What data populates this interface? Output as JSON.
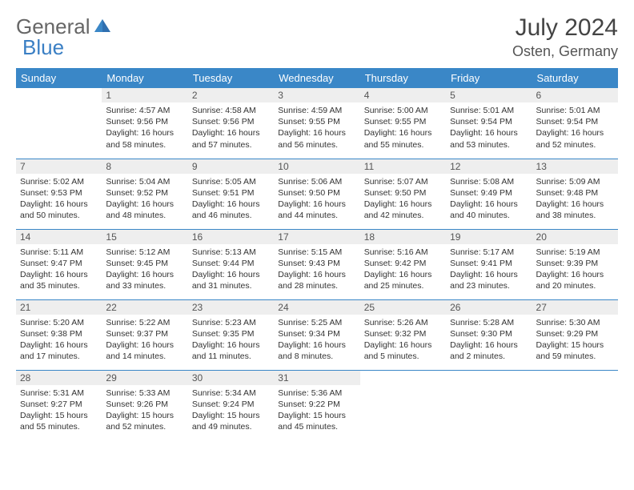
{
  "brand": {
    "part1": "General",
    "part2": "Blue"
  },
  "header": {
    "month": "July 2024",
    "location": "Osten, Germany"
  },
  "weekdays": [
    "Sunday",
    "Monday",
    "Tuesday",
    "Wednesday",
    "Thursday",
    "Friday",
    "Saturday"
  ],
  "colors": {
    "header_bg": "#3a87c7",
    "header_text": "#ffffff",
    "daynum_bg": "#eeeeee",
    "row_divider": "#3a87c7",
    "brand_blue": "#3a7fc4",
    "brand_gray": "#666666"
  },
  "first_weekday_index": 1,
  "days": [
    {
      "n": 1,
      "sunrise": "4:57 AM",
      "sunset": "9:56 PM",
      "daylight": "16 hours and 58 minutes."
    },
    {
      "n": 2,
      "sunrise": "4:58 AM",
      "sunset": "9:56 PM",
      "daylight": "16 hours and 57 minutes."
    },
    {
      "n": 3,
      "sunrise": "4:59 AM",
      "sunset": "9:55 PM",
      "daylight": "16 hours and 56 minutes."
    },
    {
      "n": 4,
      "sunrise": "5:00 AM",
      "sunset": "9:55 PM",
      "daylight": "16 hours and 55 minutes."
    },
    {
      "n": 5,
      "sunrise": "5:01 AM",
      "sunset": "9:54 PM",
      "daylight": "16 hours and 53 minutes."
    },
    {
      "n": 6,
      "sunrise": "5:01 AM",
      "sunset": "9:54 PM",
      "daylight": "16 hours and 52 minutes."
    },
    {
      "n": 7,
      "sunrise": "5:02 AM",
      "sunset": "9:53 PM",
      "daylight": "16 hours and 50 minutes."
    },
    {
      "n": 8,
      "sunrise": "5:04 AM",
      "sunset": "9:52 PM",
      "daylight": "16 hours and 48 minutes."
    },
    {
      "n": 9,
      "sunrise": "5:05 AM",
      "sunset": "9:51 PM",
      "daylight": "16 hours and 46 minutes."
    },
    {
      "n": 10,
      "sunrise": "5:06 AM",
      "sunset": "9:50 PM",
      "daylight": "16 hours and 44 minutes."
    },
    {
      "n": 11,
      "sunrise": "5:07 AM",
      "sunset": "9:50 PM",
      "daylight": "16 hours and 42 minutes."
    },
    {
      "n": 12,
      "sunrise": "5:08 AM",
      "sunset": "9:49 PM",
      "daylight": "16 hours and 40 minutes."
    },
    {
      "n": 13,
      "sunrise": "5:09 AM",
      "sunset": "9:48 PM",
      "daylight": "16 hours and 38 minutes."
    },
    {
      "n": 14,
      "sunrise": "5:11 AM",
      "sunset": "9:47 PM",
      "daylight": "16 hours and 35 minutes."
    },
    {
      "n": 15,
      "sunrise": "5:12 AM",
      "sunset": "9:45 PM",
      "daylight": "16 hours and 33 minutes."
    },
    {
      "n": 16,
      "sunrise": "5:13 AM",
      "sunset": "9:44 PM",
      "daylight": "16 hours and 31 minutes."
    },
    {
      "n": 17,
      "sunrise": "5:15 AM",
      "sunset": "9:43 PM",
      "daylight": "16 hours and 28 minutes."
    },
    {
      "n": 18,
      "sunrise": "5:16 AM",
      "sunset": "9:42 PM",
      "daylight": "16 hours and 25 minutes."
    },
    {
      "n": 19,
      "sunrise": "5:17 AM",
      "sunset": "9:41 PM",
      "daylight": "16 hours and 23 minutes."
    },
    {
      "n": 20,
      "sunrise": "5:19 AM",
      "sunset": "9:39 PM",
      "daylight": "16 hours and 20 minutes."
    },
    {
      "n": 21,
      "sunrise": "5:20 AM",
      "sunset": "9:38 PM",
      "daylight": "16 hours and 17 minutes."
    },
    {
      "n": 22,
      "sunrise": "5:22 AM",
      "sunset": "9:37 PM",
      "daylight": "16 hours and 14 minutes."
    },
    {
      "n": 23,
      "sunrise": "5:23 AM",
      "sunset": "9:35 PM",
      "daylight": "16 hours and 11 minutes."
    },
    {
      "n": 24,
      "sunrise": "5:25 AM",
      "sunset": "9:34 PM",
      "daylight": "16 hours and 8 minutes."
    },
    {
      "n": 25,
      "sunrise": "5:26 AM",
      "sunset": "9:32 PM",
      "daylight": "16 hours and 5 minutes."
    },
    {
      "n": 26,
      "sunrise": "5:28 AM",
      "sunset": "9:30 PM",
      "daylight": "16 hours and 2 minutes."
    },
    {
      "n": 27,
      "sunrise": "5:30 AM",
      "sunset": "9:29 PM",
      "daylight": "15 hours and 59 minutes."
    },
    {
      "n": 28,
      "sunrise": "5:31 AM",
      "sunset": "9:27 PM",
      "daylight": "15 hours and 55 minutes."
    },
    {
      "n": 29,
      "sunrise": "5:33 AM",
      "sunset": "9:26 PM",
      "daylight": "15 hours and 52 minutes."
    },
    {
      "n": 30,
      "sunrise": "5:34 AM",
      "sunset": "9:24 PM",
      "daylight": "15 hours and 49 minutes."
    },
    {
      "n": 31,
      "sunrise": "5:36 AM",
      "sunset": "9:22 PM",
      "daylight": "15 hours and 45 minutes."
    }
  ],
  "labels": {
    "sunrise": "Sunrise:",
    "sunset": "Sunset:",
    "daylight": "Daylight:"
  }
}
